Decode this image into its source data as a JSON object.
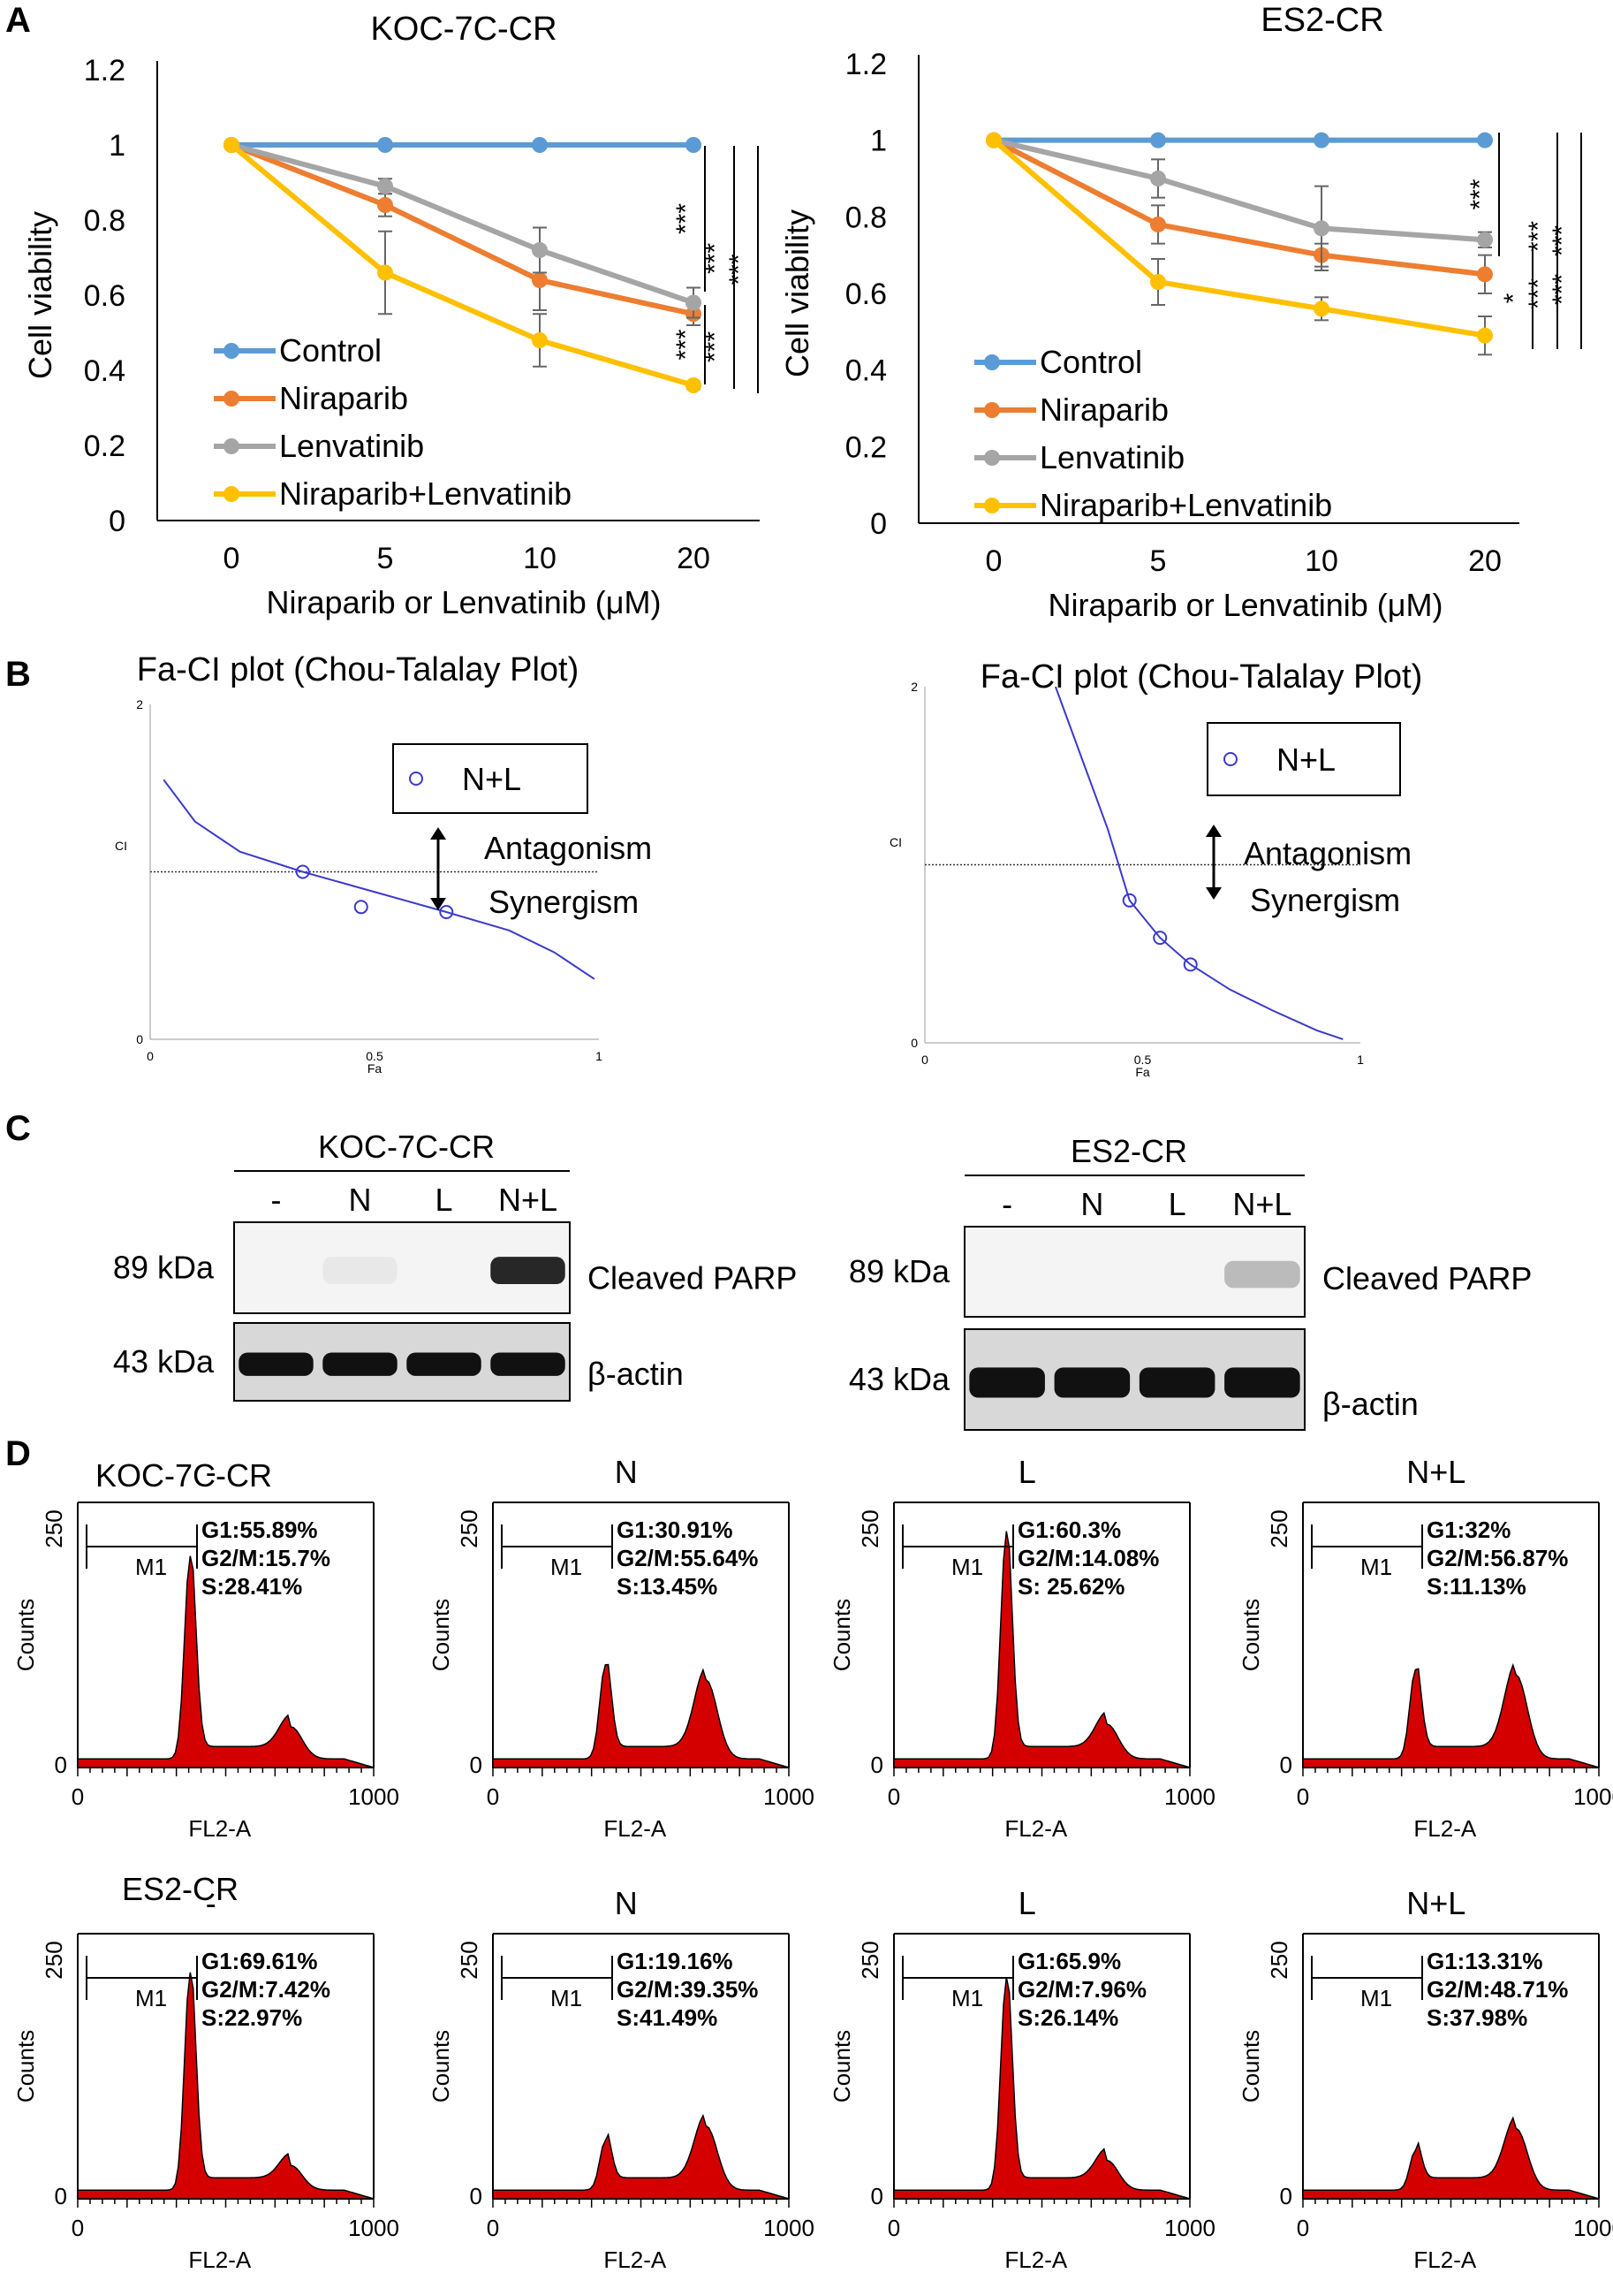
{
  "panel_letters": {
    "a": "A",
    "b": "B",
    "c": "C",
    "d": "D"
  },
  "chart_data": [
    {
      "type": "line",
      "title": "KOC-7C-CR",
      "xlabel": "Niraparib or Lenvatinib (μM)",
      "ylabel": "Cell viability",
      "x": [
        "0",
        "5",
        "10",
        "20"
      ],
      "yticks": [
        "0",
        "0.2",
        "0.4",
        "0.6",
        "0.8",
        "1",
        "1.2"
      ],
      "ylim": [
        0,
        1.2
      ],
      "legend": "bottom-left",
      "series": [
        {
          "name": "Control",
          "color": "#5b9bd5",
          "values": [
            1,
            1,
            1,
            1
          ],
          "err": [
            0,
            0,
            0,
            0
          ]
        },
        {
          "name": "Niraparib",
          "color": "#ed7d31",
          "values": [
            1,
            0.84,
            0.64,
            0.55
          ],
          "err": [
            0,
            0.03,
            0.08,
            0.03
          ]
        },
        {
          "name": "Lenvatinib",
          "color": "#a5a5a5",
          "values": [
            1,
            0.89,
            0.72,
            0.58
          ],
          "err": [
            0,
            0.02,
            0.06,
            0.04
          ]
        },
        {
          "name": "Niraparib+Lenvatinib",
          "color": "#ffc000",
          "values": [
            1,
            0.66,
            0.48,
            0.36
          ],
          "err": [
            0,
            0.11,
            0.07,
            0.01
          ]
        }
      ],
      "significance": [
        "***",
        "***",
        "***",
        "***",
        "***"
      ]
    },
    {
      "type": "line",
      "title": "ES2-CR",
      "xlabel": "Niraparib or Lenvatinib (μM)",
      "ylabel": "Cell viability",
      "x": [
        "0",
        "5",
        "10",
        "20"
      ],
      "yticks": [
        "0",
        "0.2",
        "0.4",
        "0.6",
        "0.8",
        "1",
        "1.2"
      ],
      "ylim": [
        0,
        1.2
      ],
      "legend": "bottom-left",
      "series": [
        {
          "name": "Control",
          "color": "#5b9bd5",
          "values": [
            1,
            1,
            1,
            1
          ],
          "err": [
            0,
            0,
            0,
            0
          ]
        },
        {
          "name": "Niraparib",
          "color": "#ed7d31",
          "values": [
            1,
            0.78,
            0.7,
            0.65
          ],
          "err": [
            0,
            0.05,
            0.03,
            0.05
          ]
        },
        {
          "name": "Lenvatinib",
          "color": "#a5a5a5",
          "values": [
            1,
            0.9,
            0.77,
            0.74
          ],
          "err": [
            0,
            0.05,
            0.11,
            0.02
          ]
        },
        {
          "name": "Niraparib+Lenvatinib",
          "color": "#ffc000",
          "values": [
            1,
            0.63,
            0.56,
            0.49
          ],
          "err": [
            0,
            0.06,
            0.03,
            0.05
          ]
        }
      ],
      "significance": [
        "***",
        "***",
        "***",
        "*",
        "***",
        "***"
      ]
    },
    {
      "type": "scatter",
      "title": "Fa-CI plot (Chou-Talalay Plot)",
      "xlabel": "Fa",
      "ylabel": "CI",
      "xticks": [
        "0",
        "0.5",
        "1"
      ],
      "yticks": [
        "0",
        "2"
      ],
      "xlim": [
        0,
        1
      ],
      "ylim": [
        0,
        2
      ],
      "legend": "top-right",
      "legend_entry": "N+L",
      "reference_ci": 1,
      "points": [
        {
          "fa": 0.34,
          "ci": 1.0
        },
        {
          "fa": 0.47,
          "ci": 0.79
        },
        {
          "fa": 0.66,
          "ci": 0.76
        }
      ],
      "curve": [
        {
          "fa": 0.03,
          "ci": 1.55
        },
        {
          "fa": 0.1,
          "ci": 1.3
        },
        {
          "fa": 0.2,
          "ci": 1.12
        },
        {
          "fa": 0.34,
          "ci": 1.0
        },
        {
          "fa": 0.5,
          "ci": 0.88
        },
        {
          "fa": 0.66,
          "ci": 0.76
        },
        {
          "fa": 0.8,
          "ci": 0.65
        },
        {
          "fa": 0.9,
          "ci": 0.52
        },
        {
          "fa": 0.99,
          "ci": 0.36
        }
      ],
      "annotations": [
        "Antagonism",
        "Synergism"
      ]
    },
    {
      "type": "scatter",
      "title": "Fa-CI plot (Chou-Talalay Plot)",
      "xlabel": "Fa",
      "ylabel": "CI",
      "xticks": [
        "0",
        "0.5",
        "1"
      ],
      "yticks": [
        "0",
        "2"
      ],
      "xlim": [
        0,
        1
      ],
      "ylim": [
        0,
        2
      ],
      "legend": "top-right",
      "legend_entry": "N+L",
      "reference_ci": 1,
      "points": [
        {
          "fa": 0.47,
          "ci": 0.8
        },
        {
          "fa": 0.54,
          "ci": 0.59
        },
        {
          "fa": 0.61,
          "ci": 0.44
        }
      ],
      "curve": [
        {
          "fa": 0.3,
          "ci": 2.0
        },
        {
          "fa": 0.36,
          "ci": 1.6
        },
        {
          "fa": 0.42,
          "ci": 1.2
        },
        {
          "fa": 0.47,
          "ci": 0.8
        },
        {
          "fa": 0.54,
          "ci": 0.59
        },
        {
          "fa": 0.61,
          "ci": 0.44
        },
        {
          "fa": 0.7,
          "ci": 0.3
        },
        {
          "fa": 0.8,
          "ci": 0.18
        },
        {
          "fa": 0.9,
          "ci": 0.07
        },
        {
          "fa": 0.96,
          "ci": 0.02
        }
      ],
      "annotations": [
        "Antagonism",
        "Synergism"
      ]
    }
  ],
  "western": [
    {
      "title": "KOC-7C-CR",
      "lanes": [
        "-",
        "N",
        "L",
        "N+L"
      ],
      "bands": [
        {
          "kda": "89 kDa",
          "label": "Cleaved PARP",
          "intensity": [
            0,
            0.05,
            0,
            0.9
          ]
        },
        {
          "kda": "43 kDa",
          "label": "β-actin",
          "intensity": [
            1,
            1,
            1,
            1
          ]
        }
      ]
    },
    {
      "title": "ES2-CR",
      "lanes": [
        "-",
        "N",
        "L",
        "N+L"
      ],
      "bands": [
        {
          "kda": "89 kDa",
          "label": "Cleaved PARP",
          "intensity": [
            0,
            0,
            0,
            0.25
          ]
        },
        {
          "kda": "43 kDa",
          "label": "β-actin",
          "intensity": [
            1,
            1,
            1,
            1
          ]
        }
      ]
    }
  ],
  "flow": {
    "y_label": "Counts",
    "x_label": "FL2-A",
    "y_ticks": [
      "0",
      "250"
    ],
    "x_ticks": [
      "0",
      "1000"
    ],
    "gate": "M1",
    "rows": [
      {
        "cell_line": "KOC-7C-CR",
        "histograms": [
          {
            "treatment": "-",
            "g1": "G1:55.89%",
            "g2m": "G2/M:15.7%",
            "s": "S:28.41%",
            "g1_peak": 0.82,
            "g2_peak": 0.13
          },
          {
            "treatment": "N",
            "g1": "G1:30.91%",
            "g2m": "G2/M:55.64%",
            "s": "S:13.45%",
            "g1_peak": 0.38,
            "g2_peak": 0.32
          },
          {
            "treatment": "L",
            "g1": "G1:60.3%",
            "g2m": "G2/M:14.08%",
            "s": "S: 25.62%",
            "g1_peak": 0.92,
            "g2_peak": 0.14
          },
          {
            "treatment": "N+L",
            "g1": "G1:32%",
            "g2m": "G2/M:56.87%",
            "s": "S:11.13%",
            "g1_peak": 0.36,
            "g2_peak": 0.34
          }
        ]
      },
      {
        "cell_line": "ES2-CR",
        "histograms": [
          {
            "treatment": "-",
            "g1": "G1:69.61%",
            "g2m": "G2/M:7.42%",
            "s": "S:22.97%",
            "g1_peak": 0.88,
            "g2_peak": 0.1
          },
          {
            "treatment": "N",
            "g1": "G1:19.16%",
            "g2m": "G2/M:39.35%",
            "s": "S:41.49%",
            "g1_peak": 0.2,
            "g2_peak": 0.26
          },
          {
            "treatment": "L",
            "g1": "G1:65.9%",
            "g2m": "G2/M:7.96%",
            "s": "S:26.14%",
            "g1_peak": 0.86,
            "g2_peak": 0.12
          },
          {
            "treatment": "N+L",
            "g1": "G1:13.31%",
            "g2m": "G2/M:48.71%",
            "s": "S:37.98%",
            "g1_peak": 0.16,
            "g2_peak": 0.25
          }
        ]
      }
    ]
  }
}
